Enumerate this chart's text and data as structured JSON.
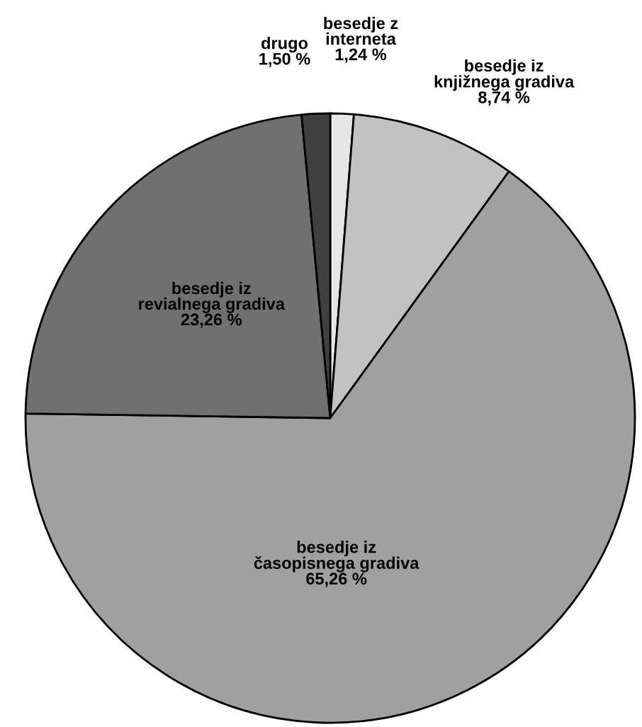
{
  "chart_data": {
    "type": "pie",
    "categories": [
      "besedje z\ninterneta",
      "besedje iz\nknjižnega gradiva",
      "besedje iz\nčasopisnega gradiva",
      "besedje iz\nrevialnega gradiva",
      "drugo"
    ],
    "values": [
      1.24,
      8.74,
      65.26,
      23.26,
      1.5
    ],
    "value_labels": [
      "1,24 %",
      "8,74 %",
      "65,26 %",
      "23,26 %",
      "1,50 %"
    ],
    "colors": [
      "#e6e6e6",
      "#c2c2c2",
      "#a0a0a0",
      "#707070",
      "#404040"
    ],
    "legend": false
  }
}
